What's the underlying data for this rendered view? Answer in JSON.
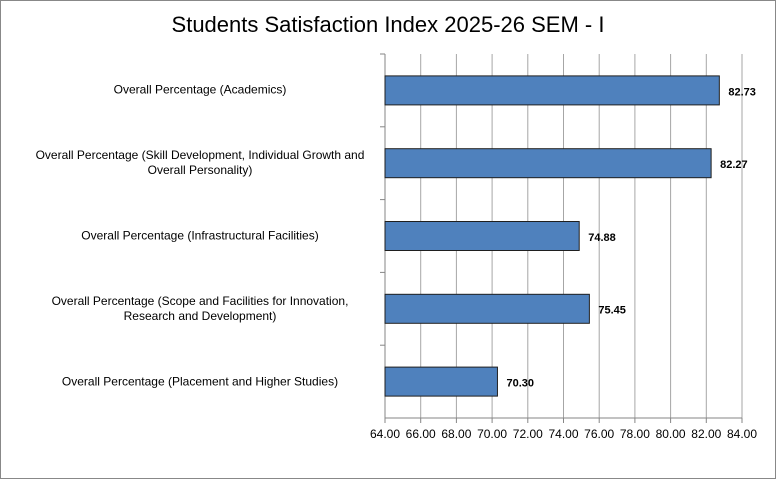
{
  "chart_data": {
    "type": "hbar",
    "title": "Students Satisfaction Index 2025-26 SEM - I",
    "categories": [
      "Overall Percentage (Academics)",
      "Overall Percentage (Skill Development, Individual Growth and Overall Personality)",
      "Overall Percentage (Infrastructural Facilities)",
      "Overall Percentage (Scope and Facilities for Innovation, Research and Development)",
      "Overall Percentage (Placement and Higher Studies)"
    ],
    "values": [
      82.73,
      82.27,
      74.88,
      75.45,
      70.3
    ],
    "value_labels": [
      "82.73",
      "82.27",
      "74.88",
      "75.45",
      "70.30"
    ],
    "color": "#4f81bd",
    "xlim": [
      64,
      84
    ],
    "xticks": [
      {
        "value": 64,
        "label": "64.00"
      },
      {
        "value": 66,
        "label": "66.00"
      },
      {
        "value": 68,
        "label": "68.00"
      },
      {
        "value": 70,
        "label": "70.00"
      },
      {
        "value": 72,
        "label": "72.00"
      },
      {
        "value": 74,
        "label": "74.00"
      },
      {
        "value": 76,
        "label": "76.00"
      },
      {
        "value": 78,
        "label": "78.00"
      },
      {
        "value": 80,
        "label": "80.00"
      },
      {
        "value": 82,
        "label": "82.00"
      },
      {
        "value": 84,
        "label": "84.00"
      }
    ],
    "grid": true
  }
}
